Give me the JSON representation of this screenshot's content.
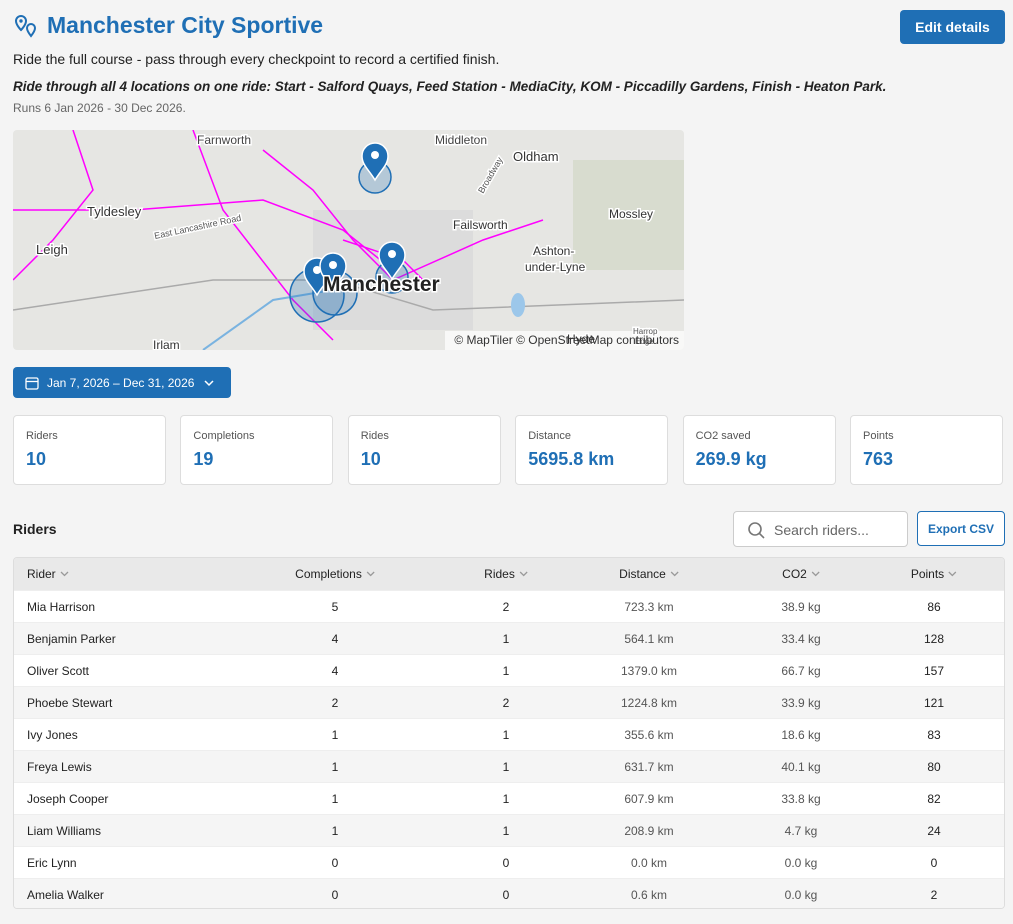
{
  "header": {
    "title": "Manchester City Sportive",
    "button": "Edit details",
    "description": "Ride the full course - pass through every checkpoint to record a certified finish.",
    "instructions": "Ride through all 4 locations on one ride: Start - Salford Quays, Feed Station - MediaCity, KOM - Piccadilly Gardens, Finish - Heaton Park.",
    "runs": "Runs 6 Jan 2026 - 30 Dec 2026."
  },
  "map": {
    "labels": [
      "Farnworth",
      "Middleton",
      "Oldham",
      "Tyldesley",
      "Broadway",
      "Failsworth",
      "Mossley",
      "Leigh",
      "East Lancashire Road",
      "Manchester",
      "Ashton-",
      "under-Lyne",
      "Irlam",
      "Hyde",
      "Harrop",
      "Edge"
    ],
    "attribution": "© MapTiler © OpenStreetMap contributors"
  },
  "date_filter": "Jan 7, 2026 – Dec 31, 2026",
  "stats": [
    {
      "label": "Riders",
      "value": "10"
    },
    {
      "label": "Completions",
      "value": "19"
    },
    {
      "label": "Rides",
      "value": "10"
    },
    {
      "label": "Distance",
      "value": "5695.8 km"
    },
    {
      "label": "CO2 saved",
      "value": "269.9 kg"
    },
    {
      "label": "Points",
      "value": "763"
    }
  ],
  "riders": {
    "title": "Riders",
    "search_placeholder": "Search riders...",
    "export": "Export CSV",
    "columns": [
      "Rider",
      "Completions",
      "Rides",
      "Distance",
      "CO2",
      "Points"
    ],
    "rows": [
      [
        "Mia Harrison",
        "5",
        "2",
        "723.3 km",
        "38.9 kg",
        "86"
      ],
      [
        "Benjamin Parker",
        "4",
        "1",
        "564.1 km",
        "33.4 kg",
        "128"
      ],
      [
        "Oliver Scott",
        "4",
        "1",
        "1379.0 km",
        "66.7 kg",
        "157"
      ],
      [
        "Phoebe Stewart",
        "2",
        "2",
        "1224.8 km",
        "33.9 kg",
        "121"
      ],
      [
        "Ivy Jones",
        "1",
        "1",
        "355.6 km",
        "18.6 kg",
        "83"
      ],
      [
        "Freya Lewis",
        "1",
        "1",
        "631.7 km",
        "40.1 kg",
        "80"
      ],
      [
        "Joseph Cooper",
        "1",
        "1",
        "607.9 km",
        "33.8 kg",
        "82"
      ],
      [
        "Liam Williams",
        "1",
        "1",
        "208.9 km",
        "4.7 kg",
        "24"
      ],
      [
        "Eric Lynn",
        "0",
        "0",
        "0.0 km",
        "0.0 kg",
        "0"
      ],
      [
        "Amelia Walker",
        "0",
        "0",
        "0.6 km",
        "0.0 kg",
        "2"
      ]
    ]
  }
}
